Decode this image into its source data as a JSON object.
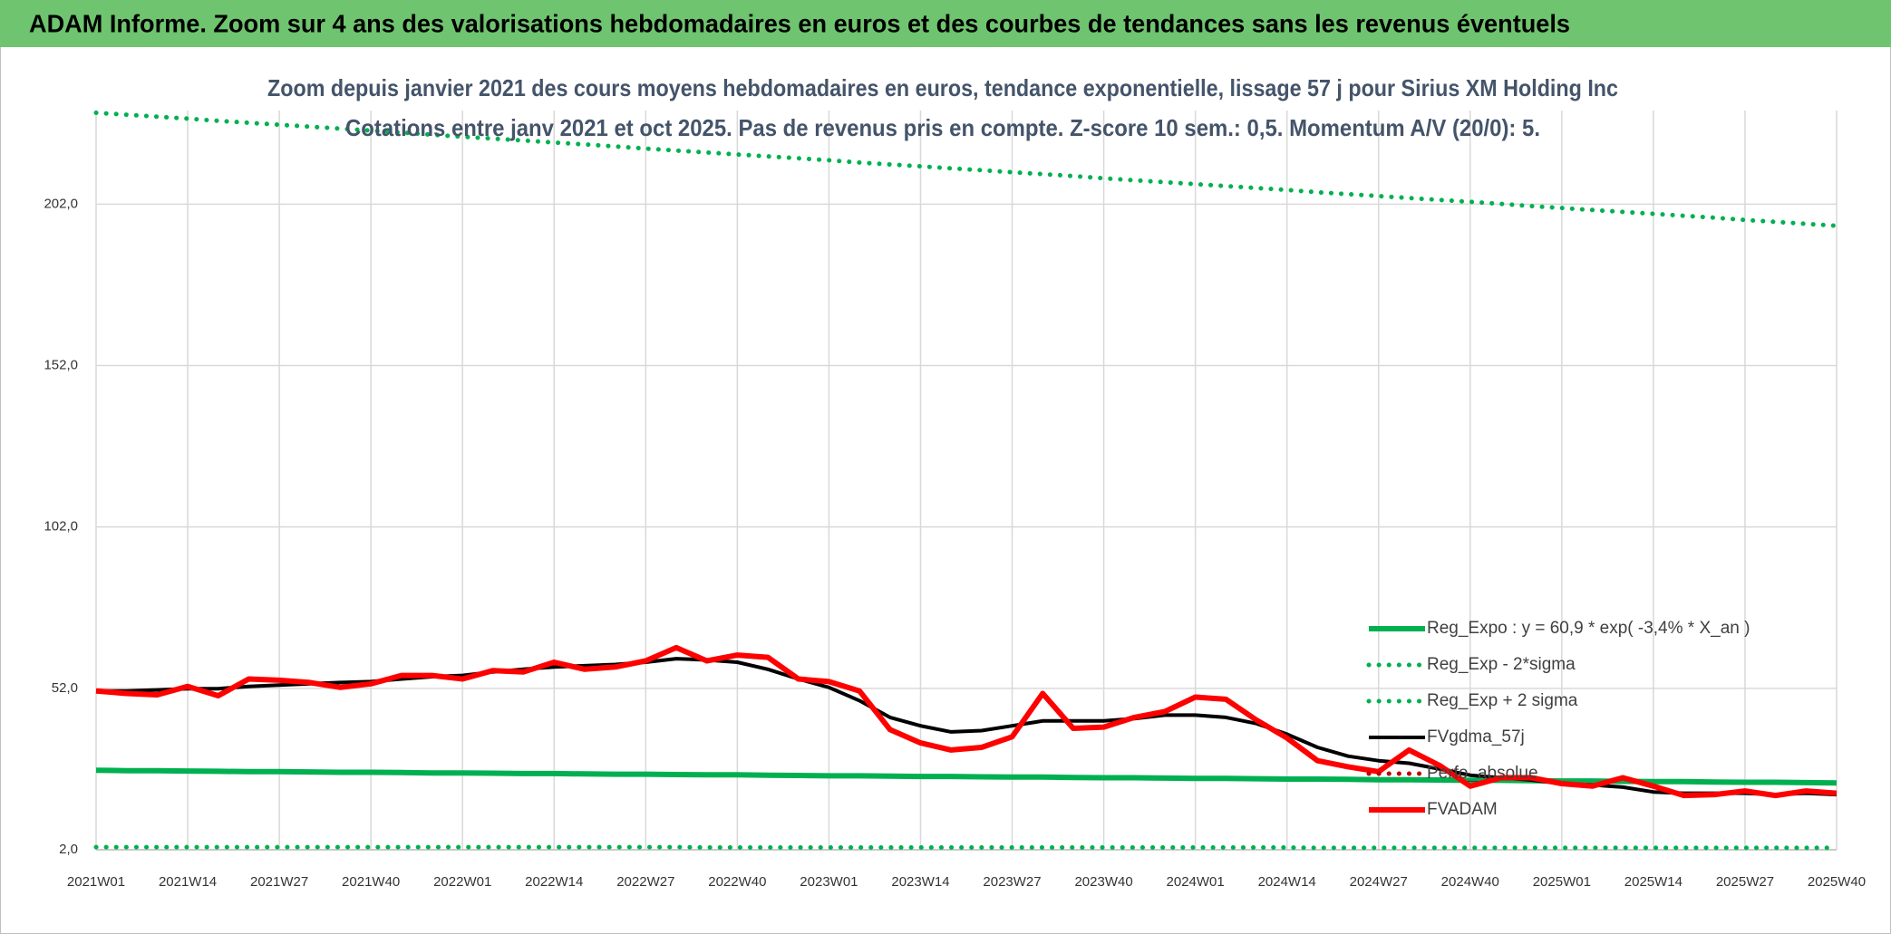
{
  "header": {
    "title": "ADAM Informe. Zoom sur 4 ans des valorisations hebdomadaires en euros et des courbes de tendances sans les revenus éventuels"
  },
  "chart_data": {
    "type": "line",
    "title": "Zoom depuis janvier 2021 des cours moyens hebdomadaires en euros, tendance exponentielle, lissage 57 j pour Sirius XM Holding Inc",
    "subtitle": "Cotations entre janv 2021 et oct 2025. Pas de revenus pris en compte. Z-score 10 sem.: 0,5. Momentum A/V (20/0): 5.",
    "categories": [
      "2021W01",
      null,
      null,
      "2021W14",
      null,
      null,
      "2021W27",
      null,
      null,
      "2021W40",
      null,
      null,
      "2022W01",
      null,
      null,
      "2022W14",
      null,
      null,
      "2022W27",
      null,
      null,
      "2022W40",
      null,
      null,
      "2023W01",
      null,
      null,
      "2023W14",
      null,
      null,
      "2023W27",
      null,
      null,
      "2023W40",
      null,
      null,
      "2024W01",
      null,
      null,
      "2024W14",
      null,
      null,
      "2024W27",
      null,
      null,
      "2024W40",
      null,
      null,
      "2025W01",
      null,
      null,
      "2025W14",
      null,
      null,
      "2025W27",
      null,
      null,
      "2025W40"
    ],
    "ylim": [
      2,
      231
    ],
    "yticks": [
      {
        "value": 2,
        "label": "2,0"
      },
      {
        "value": 52,
        "label": "52,0"
      },
      {
        "value": 102,
        "label": "102,0"
      },
      {
        "value": 152,
        "label": "152,0"
      },
      {
        "value": 202,
        "label": "202,0"
      }
    ],
    "grid": true,
    "legend": "lower right",
    "series": [
      {
        "name": "Reg_Expo : y = 60,9 * exp( -3,4% *  X_an )",
        "color": "#00b050",
        "style": "solid",
        "values": [
          26.6,
          26.5,
          26.5,
          26.4,
          26.3,
          26.2,
          26.2,
          26.1,
          26.0,
          26.0,
          25.9,
          25.8,
          25.8,
          25.7,
          25.6,
          25.6,
          25.5,
          25.4,
          25.4,
          25.3,
          25.2,
          25.2,
          25.1,
          25.0,
          24.9,
          24.9,
          24.8,
          24.7,
          24.7,
          24.6,
          24.5,
          24.5,
          24.4,
          24.3,
          24.3,
          24.2,
          24.1,
          24.1,
          24.0,
          23.9,
          23.9,
          23.8,
          23.7,
          23.7,
          23.6,
          23.5,
          23.5,
          23.4,
          23.3,
          23.3,
          23.2,
          23.1,
          23.1,
          23.0,
          22.9,
          22.9,
          22.8,
          22.7
        ]
      },
      {
        "name": "Reg_Exp - 2*sigma",
        "color": "#00b050",
        "style": "dotted",
        "values": [
          2.8,
          2.8,
          2.8,
          2.8,
          2.8,
          2.8,
          2.8,
          2.8,
          2.8,
          2.8,
          2.8,
          2.8,
          2.8,
          2.8,
          2.8,
          2.8,
          2.8,
          2.8,
          2.8,
          2.8,
          2.7,
          2.7,
          2.7,
          2.7,
          2.7,
          2.7,
          2.7,
          2.7,
          2.7,
          2.7,
          2.7,
          2.7,
          2.7,
          2.7,
          2.7,
          2.7,
          2.7,
          2.7,
          2.7,
          2.7,
          2.6,
          2.6,
          2.6,
          2.6,
          2.6,
          2.6,
          2.6,
          2.6,
          2.6,
          2.6,
          2.6,
          2.6,
          2.6,
          2.6,
          2.6,
          2.6,
          2.6,
          2.6
        ]
      },
      {
        "name": "Reg_Exp + 2 sigma",
        "color": "#00b050",
        "style": "dotted",
        "values": [
          230.3,
          229.7,
          229.1,
          228.5,
          227.8,
          227.2,
          226.6,
          226.0,
          225.4,
          224.8,
          224.2,
          223.5,
          222.9,
          222.3,
          221.7,
          221.1,
          220.5,
          219.9,
          219.2,
          218.6,
          218.0,
          217.4,
          216.8,
          216.2,
          215.6,
          214.9,
          214.3,
          213.7,
          213.1,
          212.5,
          211.9,
          211.3,
          210.7,
          210.0,
          209.4,
          208.8,
          208.2,
          207.6,
          207.0,
          206.4,
          205.7,
          205.1,
          204.5,
          203.9,
          203.3,
          202.7,
          202.1,
          201.4,
          200.8,
          200.2,
          199.6,
          199.0,
          198.4,
          197.8,
          197.1,
          196.5,
          195.9,
          195.3
        ]
      },
      {
        "name": "FVgdma_57j",
        "color": "#000000",
        "style": "solid",
        "values": [
          51.2,
          51.2,
          51.5,
          51.9,
          51.9,
          52.6,
          53.0,
          53.4,
          53.8,
          54.1,
          54.9,
          55.6,
          56.0,
          57.1,
          57.9,
          58.6,
          59.0,
          59.4,
          60.1,
          61.2,
          60.8,
          60.1,
          57.9,
          54.9,
          52.3,
          48.2,
          43.0,
          40.4,
          38.5,
          38.9,
          40.4,
          41.9,
          41.9,
          41.9,
          42.6,
          43.7,
          43.7,
          43.0,
          41.1,
          37.8,
          33.7,
          31.0,
          29.6,
          28.8,
          27.0,
          25.1,
          24.3,
          23.6,
          22.5,
          22.1,
          21.4,
          19.9,
          19.5,
          19.5,
          19.5,
          19.1,
          19.5,
          19.1
        ]
      },
      {
        "name": "Perfo_absolue",
        "color": "#c00000",
        "style": "dotted",
        "values": [
          null,
          null,
          null,
          null,
          null,
          null,
          null,
          null,
          null,
          null,
          null,
          null,
          null,
          null,
          null,
          null,
          null,
          null,
          null,
          null,
          null,
          null,
          null,
          null,
          null,
          null,
          null,
          null,
          null,
          null,
          null,
          null,
          null,
          null,
          null,
          null,
          null,
          null,
          null,
          null,
          null,
          null,
          null,
          null,
          null,
          null,
          null,
          null,
          null,
          null,
          null,
          null,
          null,
          null,
          null,
          null,
          null,
          null
        ]
      },
      {
        "name": "FVADAM",
        "color": "#ff0000",
        "style": "solid",
        "values": [
          51.2,
          50.4,
          50.0,
          52.6,
          49.7,
          54.9,
          54.5,
          53.8,
          52.3,
          53.4,
          56.0,
          56.0,
          54.9,
          57.5,
          57.1,
          60.1,
          57.9,
          58.6,
          60.5,
          64.6,
          60.5,
          62.3,
          61.6,
          54.9,
          54.1,
          51.2,
          39.2,
          35.1,
          32.9,
          33.7,
          37.0,
          50.4,
          39.6,
          40.0,
          43.0,
          44.8,
          49.3,
          48.6,
          42.2,
          36.6,
          29.6,
          27.7,
          26.2,
          32.9,
          28.1,
          21.7,
          24.3,
          24.3,
          22.5,
          21.7,
          24.3,
          21.7,
          18.8,
          19.1,
          20.2,
          18.8,
          20.2,
          19.5
        ]
      }
    ]
  }
}
